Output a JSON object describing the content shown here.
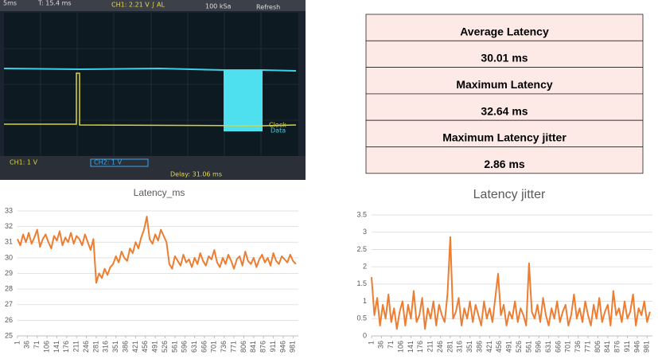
{
  "scope": {
    "timebase": "5ms",
    "trigger_time": "T: 15.4 ms",
    "trigger_level": "CH1: 2.21 V ∫ AL",
    "sample_rate": "100 kSa",
    "mode": "Refresh",
    "label_clock": "Clock",
    "label_data": "Data",
    "ch1_scale": "CH1: 1 V",
    "ch2_scale": "CH2: 1 V",
    "delay": "Delay: 31.06 ms"
  },
  "table": {
    "rows": [
      "Average Latency",
      "30.01 ms",
      "Maximum Latency",
      "32.64 ms",
      "Maximum Latency jitter",
      "2.86 ms"
    ]
  },
  "chart_data": [
    {
      "type": "line",
      "title": "Latency_ms",
      "x": [
        1,
        11,
        21,
        31,
        41,
        51,
        61,
        71,
        81,
        91,
        101,
        111,
        121,
        131,
        141,
        151,
        161,
        171,
        181,
        191,
        201,
        211,
        221,
        231,
        241,
        251,
        261,
        271,
        281,
        291,
        301,
        311,
        321,
        331,
        341,
        351,
        361,
        371,
        381,
        391,
        401,
        411,
        421,
        431,
        441,
        451,
        461,
        471,
        481,
        491,
        501,
        511,
        521,
        531,
        541,
        551,
        561,
        571,
        581,
        591,
        601,
        611,
        621,
        631,
        641,
        651,
        661,
        671,
        681,
        691,
        701,
        711,
        721,
        731,
        741,
        751,
        761,
        771,
        781,
        791,
        801,
        811,
        821,
        831,
        841,
        851,
        861,
        871,
        881,
        891,
        901,
        911,
        921,
        931,
        941,
        951,
        961,
        971,
        981,
        991
      ],
      "series": [
        {
          "color": "#ED7D31",
          "values": [
            31.2,
            30.8,
            31.5,
            31.0,
            31.6,
            30.9,
            31.3,
            31.8,
            30.7,
            31.2,
            31.5,
            31.0,
            30.6,
            31.4,
            31.1,
            31.7,
            30.8,
            31.3,
            31.0,
            31.6,
            30.9,
            31.4,
            31.2,
            30.8,
            31.5,
            31.0,
            30.5,
            31.2,
            28.4,
            29.0,
            28.7,
            29.3,
            28.9,
            29.4,
            29.6,
            30.1,
            29.7,
            30.4,
            30.0,
            29.8,
            30.6,
            30.3,
            31.0,
            30.6,
            31.3,
            31.8,
            32.64,
            31.2,
            30.9,
            31.5,
            31.1,
            31.8,
            31.4,
            31.0,
            29.6,
            29.3,
            30.1,
            29.8,
            29.5,
            30.2,
            29.7,
            29.9,
            29.4,
            30.0,
            29.6,
            30.3,
            29.8,
            29.5,
            30.1,
            29.9,
            30.5,
            29.7,
            29.4,
            30.0,
            29.6,
            30.2,
            29.8,
            29.3,
            29.9,
            30.1,
            29.5,
            30.4,
            29.8,
            29.6,
            30.0,
            29.4,
            29.9,
            30.2,
            29.7,
            30.0,
            29.5,
            30.3,
            29.8,
            29.6,
            30.1,
            29.9,
            29.7,
            30.2,
            29.8,
            29.6
          ]
        }
      ],
      "xlim": [
        1,
        1000
      ],
      "xticks": [
        1,
        36,
        71,
        106,
        141,
        176,
        211,
        246,
        281,
        316,
        351,
        386,
        421,
        456,
        491,
        526,
        561,
        596,
        631,
        666,
        701,
        736,
        771,
        806,
        841,
        876,
        911,
        946,
        981
      ],
      "ylim": [
        25,
        33
      ],
      "yticks": [
        25,
        26,
        27,
        28,
        29,
        30,
        31,
        32,
        33
      ],
      "grid": true
    },
    {
      "type": "line",
      "title": "Latency jitter",
      "x": [
        1,
        11,
        21,
        31,
        41,
        51,
        61,
        71,
        81,
        91,
        101,
        111,
        121,
        131,
        141,
        151,
        161,
        171,
        181,
        191,
        201,
        211,
        221,
        231,
        241,
        251,
        261,
        271,
        281,
        291,
        301,
        311,
        321,
        331,
        341,
        351,
        361,
        371,
        381,
        391,
        401,
        411,
        421,
        431,
        441,
        451,
        461,
        471,
        481,
        491,
        501,
        511,
        521,
        531,
        541,
        551,
        561,
        571,
        581,
        591,
        601,
        611,
        621,
        631,
        641,
        651,
        661,
        671,
        681,
        691,
        701,
        711,
        721,
        731,
        741,
        751,
        761,
        771,
        781,
        791,
        801,
        811,
        821,
        831,
        841,
        851,
        861,
        871,
        881,
        891,
        901,
        911,
        921,
        931,
        941,
        951,
        961,
        971,
        981,
        991
      ],
      "series": [
        {
          "color": "#ED7D31",
          "values": [
            1.7,
            0.6,
            1.1,
            0.3,
            0.9,
            0.5,
            1.2,
            0.4,
            0.8,
            0.2,
            0.7,
            1.0,
            0.3,
            0.9,
            0.5,
            1.3,
            0.4,
            0.6,
            1.1,
            0.2,
            0.8,
            0.5,
            1.0,
            0.3,
            0.9,
            0.6,
            0.4,
            1.2,
            2.86,
            0.5,
            0.7,
            1.1,
            0.3,
            0.8,
            0.5,
            1.0,
            0.4,
            0.9,
            0.6,
            0.3,
            1.0,
            0.5,
            0.8,
            0.4,
            1.1,
            1.8,
            0.6,
            0.9,
            0.3,
            0.7,
            0.5,
            1.0,
            0.4,
            0.8,
            0.6,
            0.3,
            2.1,
            0.7,
            0.5,
            0.9,
            0.4,
            1.1,
            0.6,
            0.3,
            0.8,
            0.5,
            1.0,
            0.4,
            0.7,
            0.9,
            0.3,
            0.6,
            1.2,
            0.5,
            0.8,
            0.4,
            1.0,
            0.6,
            0.3,
            0.9,
            0.5,
            1.1,
            0.4,
            0.7,
            0.9,
            0.3,
            1.3,
            0.6,
            0.8,
            0.4,
            1.0,
            0.5,
            0.7,
            1.2,
            0.3,
            0.8,
            0.6,
            1.0,
            0.4,
            0.7
          ]
        }
      ],
      "xlim": [
        1,
        1000
      ],
      "xticks": [
        1,
        36,
        71,
        106,
        141,
        176,
        211,
        246,
        281,
        316,
        351,
        386,
        421,
        456,
        491,
        526,
        561,
        596,
        631,
        666,
        701,
        736,
        771,
        806,
        841,
        876,
        911,
        946,
        981
      ],
      "ylim": [
        0,
        3.5
      ],
      "yticks": [
        0,
        0.5,
        1,
        1.5,
        2,
        2.5,
        3,
        3.5
      ],
      "grid": true
    }
  ]
}
